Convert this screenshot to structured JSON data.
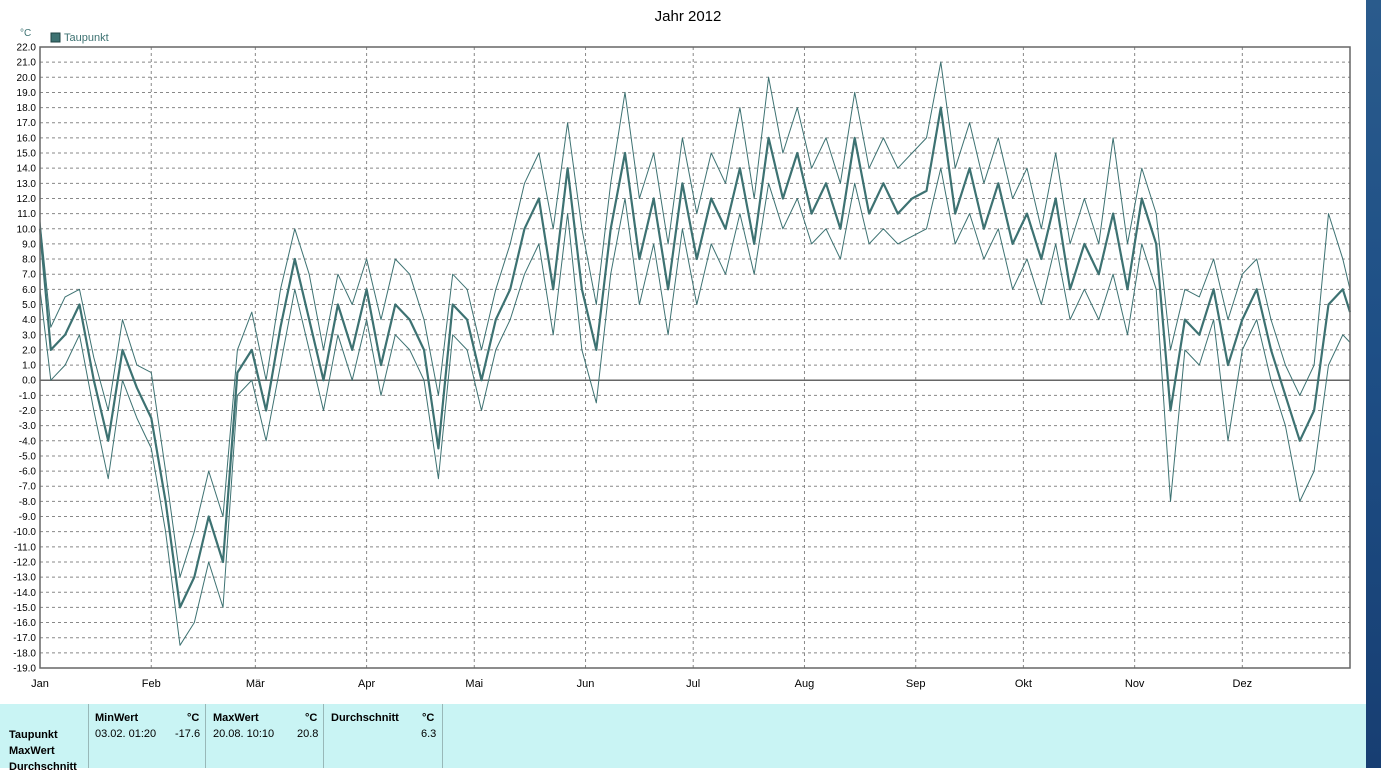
{
  "chart_data": {
    "type": "line",
    "title": "Jahr 2012",
    "ylabel": "°C",
    "ylim": [
      -19,
      22
    ],
    "y_ticks": [
      "22.0",
      "21.0",
      "20.0",
      "19.0",
      "18.0",
      "17.0",
      "16.0",
      "15.0",
      "14.0",
      "13.0",
      "12.0",
      "11.0",
      "10.0",
      "9.0",
      "8.0",
      "7.0",
      "6.0",
      "5.0",
      "4.0",
      "3.0",
      "2.0",
      "1.0",
      "0.0",
      "-1.0",
      "-2.0",
      "-3.0",
      "-4.0",
      "-5.0",
      "-6.0",
      "-7.0",
      "-8.0",
      "-9.0",
      "-10.0",
      "-11.0",
      "-12.0",
      "-13.0",
      "-14.0",
      "-15.0",
      "-16.0",
      "-17.0",
      "-18.0",
      "-19.0"
    ],
    "x_ticks": [
      "Jan",
      "Feb",
      "Mär",
      "Apr",
      "Mai",
      "Jun",
      "Jul",
      "Aug",
      "Sep",
      "Okt",
      "Nov",
      "Dez"
    ],
    "grid": true,
    "legend": {
      "position": "top-left",
      "entries": [
        "Taupunkt"
      ]
    },
    "series_color": "#3d7272",
    "anchor_days": [
      1,
      4,
      8,
      12,
      16,
      20,
      24,
      28,
      32,
      36,
      40,
      44,
      48,
      52,
      56,
      60,
      64,
      68,
      72,
      76,
      80,
      84,
      88,
      92,
      96,
      100,
      104,
      108,
      112,
      116,
      120,
      124,
      128,
      132,
      136,
      140,
      144,
      148,
      152,
      156,
      160,
      164,
      168,
      172,
      176,
      180,
      184,
      188,
      192,
      196,
      200,
      204,
      208,
      212,
      216,
      220,
      224,
      228,
      232,
      236,
      240,
      244,
      248,
      252,
      256,
      260,
      264,
      268,
      272,
      276,
      280,
      284,
      288,
      292,
      296,
      300,
      304,
      308,
      312,
      316,
      320,
      324,
      328,
      332,
      336,
      340,
      344,
      348,
      352,
      356,
      360,
      364,
      366
    ],
    "series": [
      {
        "name": "Taupunkt",
        "values": [
          10.0,
          2.0,
          3.0,
          5.0,
          0.0,
          -4.0,
          2.0,
          -0.5,
          -2.5,
          -8.0,
          -15.0,
          -13.0,
          -9.0,
          -12.0,
          0.5,
          2.0,
          -2.0,
          3.5,
          8.0,
          4.0,
          0.0,
          5.0,
          2.0,
          6.0,
          1.0,
          5.0,
          4.0,
          2.0,
          -4.5,
          5.0,
          4.0,
          0.0,
          4.0,
          6.0,
          10.0,
          12.0,
          6.0,
          14.0,
          6.0,
          2.0,
          10.0,
          15.0,
          8.0,
          12.0,
          6.0,
          13.0,
          8.0,
          12.0,
          10.0,
          14.0,
          9.0,
          16.0,
          12.0,
          15.0,
          11.0,
          13.0,
          10.0,
          16.0,
          11.0,
          13.0,
          11.0,
          12.0,
          12.5,
          18.0,
          11.0,
          14.0,
          10.0,
          13.0,
          9.0,
          11.0,
          8.0,
          12.0,
          6.0,
          9.0,
          7.0,
          11.0,
          6.0,
          12.0,
          9.0,
          -2.0,
          4.0,
          3.0,
          6.0,
          1.0,
          4.0,
          6.0,
          2.0,
          -1.0,
          -4.0,
          -2.0,
          5.0,
          6.0,
          4.5
        ]
      },
      {
        "name": "MaxWert",
        "values": [
          10.5,
          3.5,
          5.5,
          6.0,
          1.5,
          -2.0,
          4.0,
          1.0,
          0.5,
          -6.0,
          -13.0,
          -10.0,
          -6.0,
          -9.0,
          2.0,
          4.5,
          0.0,
          6.0,
          10.0,
          7.0,
          2.0,
          7.0,
          5.0,
          8.0,
          4.0,
          8.0,
          7.0,
          4.0,
          -1.0,
          7.0,
          6.0,
          2.0,
          6.0,
          9.0,
          13.0,
          15.0,
          10.0,
          17.0,
          10.0,
          5.0,
          13.0,
          19.0,
          12.0,
          15.0,
          9.0,
          16.0,
          11.0,
          15.0,
          13.0,
          18.0,
          12.0,
          20.0,
          15.0,
          18.0,
          14.0,
          16.0,
          13.0,
          19.0,
          14.0,
          16.0,
          14.0,
          15.0,
          16.0,
          21.0,
          14.0,
          17.0,
          13.0,
          16.0,
          12.0,
          14.0,
          10.0,
          15.0,
          9.0,
          12.0,
          9.0,
          16.0,
          9.0,
          14.0,
          11.0,
          2.0,
          6.0,
          5.5,
          8.0,
          4.0,
          7.0,
          8.0,
          4.0,
          1.0,
          -1.0,
          1.0,
          11.0,
          8.0,
          6.0
        ]
      },
      {
        "name": "MinWert",
        "values": [
          6.0,
          0.0,
          1.0,
          3.0,
          -2.0,
          -6.5,
          0.0,
          -2.5,
          -4.5,
          -10.0,
          -17.5,
          -16.0,
          -12.0,
          -15.0,
          -1.0,
          0.0,
          -4.0,
          1.0,
          6.0,
          2.0,
          -2.0,
          3.0,
          0.0,
          4.0,
          -1.0,
          3.0,
          2.0,
          0.0,
          -6.5,
          3.0,
          2.0,
          -2.0,
          2.0,
          4.0,
          7.0,
          9.0,
          3.0,
          11.0,
          2.0,
          -1.5,
          7.0,
          12.0,
          5.0,
          9.0,
          3.0,
          10.0,
          5.0,
          9.0,
          7.0,
          11.0,
          7.0,
          13.0,
          10.0,
          12.0,
          9.0,
          10.0,
          8.0,
          13.0,
          9.0,
          10.0,
          9.0,
          9.5,
          10.0,
          14.0,
          9.0,
          11.0,
          8.0,
          10.0,
          6.0,
          8.0,
          5.0,
          9.0,
          4.0,
          6.0,
          4.0,
          7.0,
          3.0,
          9.0,
          6.0,
          -8.0,
          2.0,
          1.0,
          4.0,
          -4.0,
          2.0,
          4.0,
          0.0,
          -3.0,
          -8.0,
          -6.0,
          1.0,
          3.0,
          2.5
        ]
      }
    ]
  },
  "stats": {
    "row_labels": [
      "Taupunkt",
      "MaxWert",
      "Durchschnitt"
    ],
    "min": {
      "header": "MinWert",
      "unit": "°C",
      "date": "03.02.  01:20",
      "value": "-17.6"
    },
    "max": {
      "header": "MaxWert",
      "unit": "°C",
      "date": "20.08.  10:10",
      "value": "20.8"
    },
    "avg": {
      "header": "Durchschnitt",
      "unit": "°C",
      "value": "6.3"
    }
  }
}
